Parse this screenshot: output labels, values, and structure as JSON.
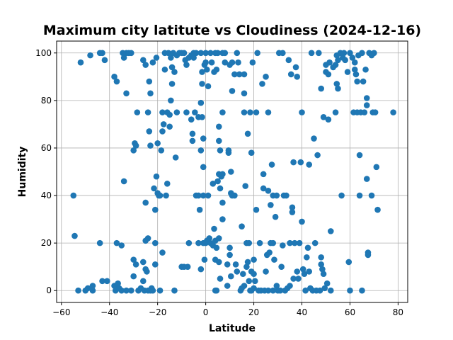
{
  "chart_data": {
    "type": "scatter",
    "title": "Maximum city latitute vs Cloudiness (2024-12-16)",
    "xlabel": "Latitude",
    "ylabel": "Humidity",
    "xlim": [
      -62,
      84
    ],
    "ylim": [
      -5,
      105
    ],
    "xticks": [
      -60,
      -40,
      -20,
      0,
      20,
      40,
      60,
      80
    ],
    "yticks": [
      0,
      20,
      40,
      60,
      80,
      100
    ],
    "grid": true,
    "marker_color": "#1f77b4",
    "points": [
      [
        -55,
        40
      ],
      [
        -54.5,
        23
      ],
      [
        -53,
        0
      ],
      [
        -52,
        96
      ],
      [
        -50,
        0
      ],
      [
        -49,
        1
      ],
      [
        -48,
        99
      ],
      [
        -47,
        2
      ],
      [
        -47,
        0
      ],
      [
        -44,
        100
      ],
      [
        -44,
        20
      ],
      [
        -43,
        100
      ],
      [
        -43,
        4
      ],
      [
        -42,
        97
      ],
      [
        -41,
        4
      ],
      [
        -38,
        90
      ],
      [
        -38,
        2
      ],
      [
        -37.5,
        0
      ],
      [
        -37,
        88
      ],
      [
        -37,
        20
      ],
      [
        -36.5,
        3
      ],
      [
        -36,
        1
      ],
      [
        -35,
        19
      ],
      [
        -35,
        0
      ],
      [
        -34.5,
        100
      ],
      [
        -34,
        98
      ],
      [
        -34,
        46
      ],
      [
        -33,
        0
      ],
      [
        -33,
        83
      ],
      [
        -33,
        100
      ],
      [
        -32,
        100
      ],
      [
        -31,
        0
      ],
      [
        -31,
        100
      ],
      [
        -30,
        13
      ],
      [
        -30,
        6
      ],
      [
        -30,
        59
      ],
      [
        -29.5,
        62
      ],
      [
        -29,
        61
      ],
      [
        -29,
        11
      ],
      [
        -28.5,
        75
      ],
      [
        -28,
        0
      ],
      [
        -27,
        1
      ],
      [
        -26,
        97
      ],
      [
        -26,
        4
      ],
      [
        -26,
        12
      ],
      [
        -25.5,
        0
      ],
      [
        -25,
        95
      ],
      [
        -25,
        21
      ],
      [
        -25,
        37
      ],
      [
        -25,
        9
      ],
      [
        -24.5,
        8
      ],
      [
        -24,
        22
      ],
      [
        -24,
        0
      ],
      [
        -24,
        75
      ],
      [
        -23.5,
        88
      ],
      [
        -23.5,
        67
      ],
      [
        -23,
        61
      ],
      [
        -23,
        0
      ],
      [
        -23,
        83
      ],
      [
        -22.5,
        1
      ],
      [
        -22,
        96
      ],
      [
        -22,
        0
      ],
      [
        -21.5,
        43
      ],
      [
        -21,
        34
      ],
      [
        -21,
        20
      ],
      [
        -21,
        11
      ],
      [
        -20.5,
        98
      ],
      [
        -20.5,
        48
      ],
      [
        -20,
        62
      ],
      [
        -20,
        41
      ],
      [
        -19.5,
        40
      ],
      [
        -19,
        40
      ],
      [
        -19,
        0
      ],
      [
        -18.5,
        59
      ],
      [
        -18,
        75
      ],
      [
        -18,
        67
      ],
      [
        -18,
        16
      ],
      [
        -17.5,
        70
      ],
      [
        -17,
        100
      ],
      [
        -17,
        93
      ],
      [
        -16.5,
        40
      ],
      [
        -16,
        45
      ],
      [
        -16,
        75
      ],
      [
        -15.5,
        100
      ],
      [
        -15,
        74
      ],
      [
        -15,
        69
      ],
      [
        -14.5,
        98
      ],
      [
        -14.5,
        80
      ],
      [
        -14,
        87
      ],
      [
        -14,
        94
      ],
      [
        -13.5,
        100
      ],
      [
        -13,
        92
      ],
      [
        -13,
        0
      ],
      [
        -12.5,
        56
      ],
      [
        -12,
        99
      ],
      [
        -12,
        75
      ],
      [
        -11,
        100
      ],
      [
        -10,
        10
      ],
      [
        -10,
        100
      ],
      [
        -9,
        100
      ],
      [
        -9,
        10
      ],
      [
        -8.5,
        97
      ],
      [
        -8,
        75
      ],
      [
        -8,
        95
      ],
      [
        -7.5,
        10
      ],
      [
        -7,
        20
      ],
      [
        -7,
        98
      ],
      [
        -6,
        72
      ],
      [
        -6,
        99
      ],
      [
        -5.5,
        63
      ],
      [
        -5.5,
        66
      ],
      [
        -5,
        100
      ],
      [
        -5,
        98
      ],
      [
        -4.5,
        75
      ],
      [
        -4,
        100
      ],
      [
        -4,
        40
      ],
      [
        -3,
        40
      ],
      [
        -3,
        20
      ],
      [
        -3,
        73
      ],
      [
        -2.5,
        34
      ],
      [
        -2,
        100
      ],
      [
        -2,
        79
      ],
      [
        -2,
        9
      ],
      [
        -2,
        59
      ],
      [
        -1.5,
        92
      ],
      [
        -1.5,
        87
      ],
      [
        -1.5,
        73
      ],
      [
        -1,
        64
      ],
      [
        -1,
        52
      ],
      [
        -1,
        40
      ],
      [
        -1,
        20
      ],
      [
        -0.5,
        95
      ],
      [
        -0.5,
        13
      ],
      [
        0,
        96
      ],
      [
        0,
        20
      ],
      [
        0,
        100
      ],
      [
        0.5,
        93
      ],
      [
        0.5,
        21
      ],
      [
        1,
        86
      ],
      [
        1,
        40
      ],
      [
        1.5,
        22
      ],
      [
        2,
        100
      ],
      [
        2,
        20
      ],
      [
        2.5,
        96
      ],
      [
        3,
        19
      ],
      [
        3,
        45
      ],
      [
        3.5,
        92
      ],
      [
        3.5,
        26
      ],
      [
        4,
        100
      ],
      [
        4,
        13
      ],
      [
        4,
        21
      ],
      [
        4,
        0
      ],
      [
        4.5,
        93
      ],
      [
        4.5,
        18
      ],
      [
        4.5,
        0
      ],
      [
        5,
        46
      ],
      [
        5,
        100
      ],
      [
        5.5,
        69
      ],
      [
        5.5,
        63
      ],
      [
        5.5,
        49
      ],
      [
        5.5,
        22
      ],
      [
        5.5,
        12
      ],
      [
        6,
        59
      ],
      [
        6,
        5
      ],
      [
        6,
        43
      ],
      [
        6.5,
        48
      ],
      [
        7,
        75
      ],
      [
        7,
        49
      ],
      [
        7,
        37
      ],
      [
        7,
        30
      ],
      [
        7,
        100
      ],
      [
        8,
        100
      ],
      [
        8,
        96
      ],
      [
        9,
        11
      ],
      [
        9,
        2
      ],
      [
        9.5,
        58
      ],
      [
        9.5,
        59
      ],
      [
        10,
        95
      ],
      [
        10,
        18
      ],
      [
        10,
        15
      ],
      [
        10.5,
        50
      ],
      [
        10.5,
        41
      ],
      [
        10.5,
        6
      ],
      [
        11,
        84
      ],
      [
        11,
        40
      ],
      [
        11,
        96
      ],
      [
        12,
        40
      ],
      [
        12,
        91
      ],
      [
        12.5,
        11
      ],
      [
        13,
        100
      ],
      [
        13,
        8
      ],
      [
        13.5,
        96
      ],
      [
        14,
        91
      ],
      [
        14.5,
        0
      ],
      [
        15,
        27
      ],
      [
        15,
        1
      ],
      [
        15.5,
        7
      ],
      [
        16,
        75
      ],
      [
        16,
        2
      ],
      [
        16,
        91
      ],
      [
        16,
        83
      ],
      [
        16.5,
        44
      ],
      [
        17,
        20
      ],
      [
        17,
        10
      ],
      [
        17.5,
        66
      ],
      [
        17.5,
        12
      ],
      [
        18,
        20
      ],
      [
        18,
        4
      ],
      [
        18.5,
        75
      ],
      [
        18.5,
        0
      ],
      [
        19,
        8
      ],
      [
        19,
        58
      ],
      [
        19,
        0
      ],
      [
        19.5,
        96
      ],
      [
        20,
        13
      ],
      [
        20,
        7
      ],
      [
        20,
        1
      ],
      [
        20.5,
        4
      ],
      [
        21,
        34
      ],
      [
        21,
        75
      ],
      [
        21.5,
        100
      ],
      [
        22,
        0
      ],
      [
        22.5,
        20
      ],
      [
        23,
        0
      ],
      [
        23.5,
        87
      ],
      [
        24,
        43
      ],
      [
        24,
        49
      ],
      [
        24.5,
        0
      ],
      [
        25,
        90
      ],
      [
        25,
        8
      ],
      [
        25.5,
        15
      ],
      [
        26,
        75
      ],
      [
        26,
        42
      ],
      [
        26,
        0
      ],
      [
        26.5,
        16
      ],
      [
        27,
        20
      ],
      [
        27,
        36
      ],
      [
        27.5,
        53
      ],
      [
        28,
        40
      ],
      [
        28,
        20
      ],
      [
        28,
        0
      ],
      [
        28.5,
        13
      ],
      [
        29,
        31
      ],
      [
        29.5,
        40
      ],
      [
        29.5,
        2
      ],
      [
        30,
        0
      ],
      [
        30.5,
        100
      ],
      [
        31,
        0
      ],
      [
        31.5,
        10
      ],
      [
        32,
        19
      ],
      [
        32,
        100
      ],
      [
        32.5,
        40
      ],
      [
        33,
        0
      ],
      [
        33.5,
        40
      ],
      [
        34,
        1
      ],
      [
        34.5,
        97
      ],
      [
        35,
        2
      ],
      [
        35,
        20
      ],
      [
        35.5,
        91
      ],
      [
        36,
        35
      ],
      [
        36,
        33
      ],
      [
        36.5,
        54
      ],
      [
        36.5,
        5
      ],
      [
        37,
        20
      ],
      [
        37.5,
        94
      ],
      [
        38,
        8
      ],
      [
        38,
        90
      ],
      [
        38.5,
        5
      ],
      [
        39,
        20
      ],
      [
        39.5,
        54
      ],
      [
        40,
        29
      ],
      [
        40,
        75
      ],
      [
        40.5,
        9
      ],
      [
        41,
        7
      ],
      [
        41.5,
        0
      ],
      [
        42,
        14
      ],
      [
        42.5,
        18
      ],
      [
        43,
        53
      ],
      [
        43,
        8
      ],
      [
        43.5,
        1
      ],
      [
        44,
        100
      ],
      [
        44.5,
        0
      ],
      [
        45,
        64
      ],
      [
        45.5,
        20
      ],
      [
        46,
        0
      ],
      [
        46.5,
        57
      ],
      [
        47,
        100
      ],
      [
        47.5,
        0
      ],
      [
        48,
        11
      ],
      [
        48,
        14
      ],
      [
        48,
        85
      ],
      [
        48.5,
        9
      ],
      [
        49,
        7
      ],
      [
        49,
        73
      ],
      [
        49.5,
        1
      ],
      [
        50,
        95
      ],
      [
        50,
        92
      ],
      [
        50.5,
        3
      ],
      [
        51,
        91
      ],
      [
        51,
        72
      ],
      [
        51.5,
        96
      ],
      [
        52,
        25
      ],
      [
        52,
        0
      ],
      [
        53,
        94
      ],
      [
        54,
        95
      ],
      [
        54,
        75
      ],
      [
        54.5,
        87
      ],
      [
        54.5,
        99
      ],
      [
        55,
        85
      ],
      [
        55,
        97
      ],
      [
        56,
        100
      ],
      [
        56.5,
        40
      ],
      [
        57,
        98
      ],
      [
        57.5,
        100
      ],
      [
        58,
        97
      ],
      [
        59,
        92
      ],
      [
        59.5,
        12
      ],
      [
        60,
        0
      ],
      [
        60,
        100
      ],
      [
        61,
        98
      ],
      [
        61.5,
        75
      ],
      [
        62,
        93
      ],
      [
        62,
        96
      ],
      [
        62.5,
        91
      ],
      [
        63,
        88
      ],
      [
        63,
        75
      ],
      [
        63.5,
        99
      ],
      [
        64,
        40
      ],
      [
        64,
        57
      ],
      [
        64.5,
        75
      ],
      [
        65,
        0
      ],
      [
        65,
        100
      ],
      [
        65.5,
        88
      ],
      [
        66,
        75
      ],
      [
        66.5,
        93
      ],
      [
        67,
        78
      ],
      [
        67,
        81
      ],
      [
        67,
        47
      ],
      [
        67.5,
        16
      ],
      [
        67.5,
        15
      ],
      [
        68,
        100
      ],
      [
        69,
        40
      ],
      [
        69,
        99
      ],
      [
        69.5,
        75
      ],
      [
        70,
        100
      ],
      [
        70.5,
        75
      ],
      [
        71,
        52
      ],
      [
        71.5,
        34
      ],
      [
        78,
        75
      ]
    ]
  }
}
